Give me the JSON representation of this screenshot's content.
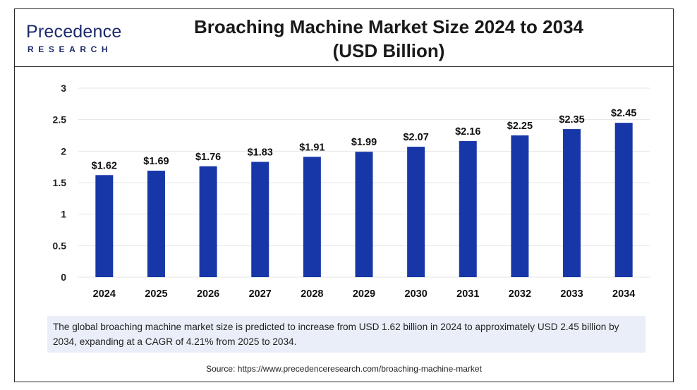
{
  "header": {
    "logo_main": "Precedence",
    "logo_sub": "RESEARCH",
    "title_line1": "Broaching Machine Market Size 2024 to 2034",
    "title_line2": "(USD Billion)"
  },
  "colors": {
    "bar": "#1737a8",
    "grid": "#e4e4e4",
    "note_bg": "#e9eef8",
    "brand": "#1c2a6b"
  },
  "chart_data": {
    "type": "bar",
    "title": "Broaching Machine Market Size 2024 to 2034 (USD Billion)",
    "categories": [
      "2024",
      "2025",
      "2026",
      "2027",
      "2028",
      "2029",
      "2030",
      "2031",
      "2032",
      "2033",
      "2034"
    ],
    "values": [
      1.62,
      1.69,
      1.76,
      1.83,
      1.91,
      1.99,
      2.07,
      2.16,
      2.25,
      2.35,
      2.45
    ],
    "data_labels": [
      "$1.62",
      "$1.69",
      "$1.76",
      "$1.83",
      "$1.91",
      "$1.99",
      "$2.07",
      "$2.16",
      "$2.25",
      "$2.35",
      "$2.45"
    ],
    "yticks": [
      "0",
      "0.5",
      "1",
      "1.5",
      "2",
      "2.5",
      "3"
    ],
    "ylim": [
      0,
      3
    ],
    "xlabel": "",
    "ylabel": "",
    "grid": true,
    "legend": "none"
  },
  "note": "The global broaching machine market size is predicted to increase from USD 1.62 billion in 2024 to approximately USD 2.45 billion by 2034, expanding at a CAGR of 4.21% from 2025 to 2034.",
  "source": "Source: https://www.precedenceresearch.com/broaching-machine-market"
}
